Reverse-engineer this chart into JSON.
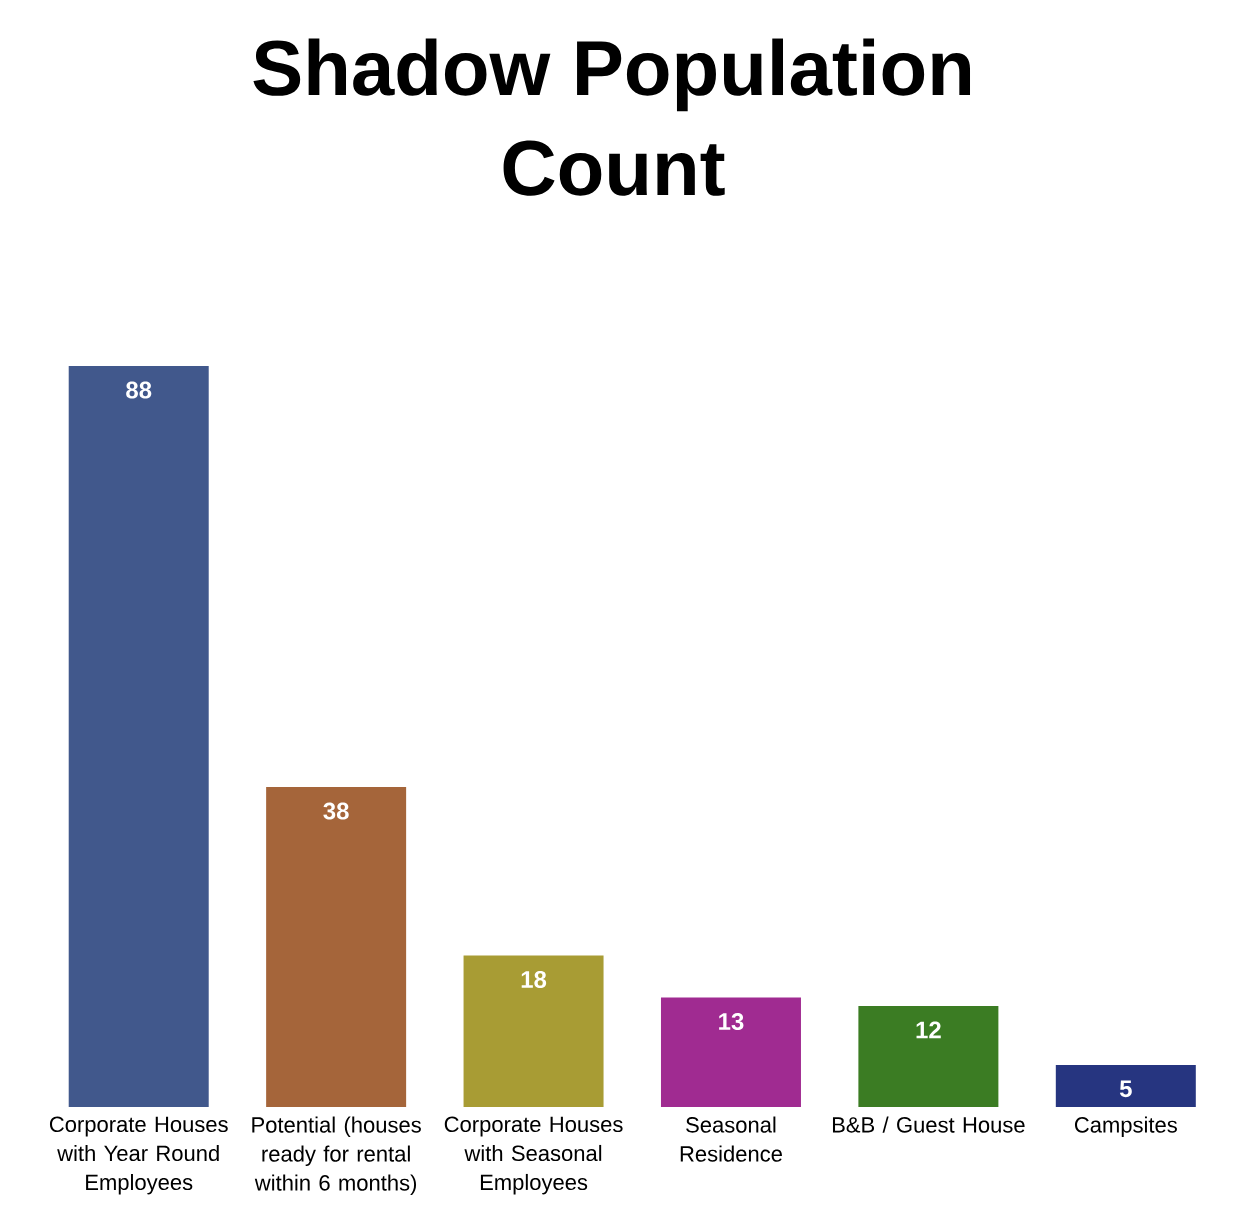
{
  "chart_data": {
    "type": "bar",
    "title": "Shadow Population Count",
    "categories": [
      "Corporate Houses with Year Round Employees",
      "Potential (houses ready for rental within 6 months)",
      "Corporate Houses with Seasonal Employees",
      "Seasonal Residence",
      "B&B / Guest House",
      "Campsites"
    ],
    "values": [
      88,
      38,
      18,
      13,
      12,
      5
    ],
    "colors": [
      "#41588c",
      "#a5653a",
      "#a89c34",
      "#a02b91",
      "#3b7c23",
      "#263580"
    ],
    "data_labels": true
  }
}
